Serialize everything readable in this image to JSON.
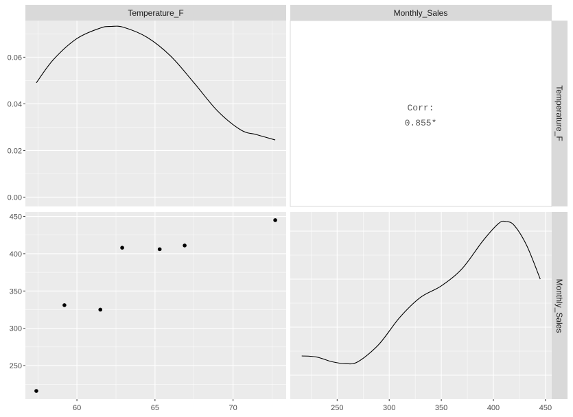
{
  "chart_data": {
    "type": "pairs",
    "variables": [
      "Temperature_F",
      "Monthly_Sales"
    ],
    "strips": {
      "top": [
        "Temperature_F",
        "Monthly_Sales"
      ],
      "right": [
        "Temperature_F",
        "Monthly_Sales"
      ]
    },
    "panels": {
      "temperature_density": {
        "type": "line",
        "x": [
          57.4,
          58.5,
          60.0,
          61.5,
          62.2,
          63.0,
          64.5,
          66.0,
          67.5,
          69.0,
          70.5,
          71.5,
          72.7
        ],
        "y": [
          0.049,
          0.059,
          0.068,
          0.0725,
          0.0732,
          0.0728,
          0.0685,
          0.0605,
          0.049,
          0.037,
          0.0288,
          0.0268,
          0.0245
        ],
        "xlim": [
          56.7,
          73.4
        ],
        "ylim": [
          -0.004,
          0.0757
        ],
        "yticks": [
          0.0,
          0.02,
          0.04,
          0.06
        ],
        "ytick_labels": [
          "0.00",
          "0.02",
          "0.04",
          "0.06"
        ]
      },
      "correlation": {
        "label": "Corr:",
        "value": "0.855*"
      },
      "scatter": {
        "type": "scatter",
        "x": [
          57.4,
          59.2,
          61.5,
          62.9,
          65.3,
          66.9,
          72.7
        ],
        "y": [
          216,
          331,
          325,
          408,
          406,
          411,
          445
        ],
        "xlim": [
          56.7,
          73.4
        ],
        "ylim": [
          205,
          456
        ],
        "xticks": [
          60,
          65,
          70
        ],
        "xtick_labels": [
          "60",
          "65",
          "70"
        ],
        "yticks": [
          250,
          300,
          350,
          400,
          450
        ],
        "ytick_labels": [
          "250",
          "300",
          "350",
          "400",
          "450"
        ]
      },
      "sales_density": {
        "type": "line",
        "x": [
          216,
          230,
          245,
          258,
          270,
          290,
          310,
          330,
          350,
          370,
          390,
          405,
          412,
          420,
          432,
          445
        ],
        "y": [
          0.0045,
          0.0044,
          0.0039,
          0.0037,
          0.0039,
          0.0057,
          0.0085,
          0.0106,
          0.0118,
          0.0136,
          0.0165,
          0.0183,
          0.0185,
          0.0181,
          0.016,
          0.0125
        ],
        "xlim": [
          205,
          456
        ],
        "ylim": [
          0.0,
          0.0195
        ],
        "xticks": [
          250,
          300,
          350,
          400,
          450
        ],
        "xtick_labels": [
          "250",
          "300",
          "350",
          "400",
          "450"
        ]
      }
    },
    "colors": {
      "panel_bg": "#ebebeb",
      "grid_major": "#ffffff",
      "strip_bg": "#d9d9d9",
      "data": "#000000"
    }
  }
}
